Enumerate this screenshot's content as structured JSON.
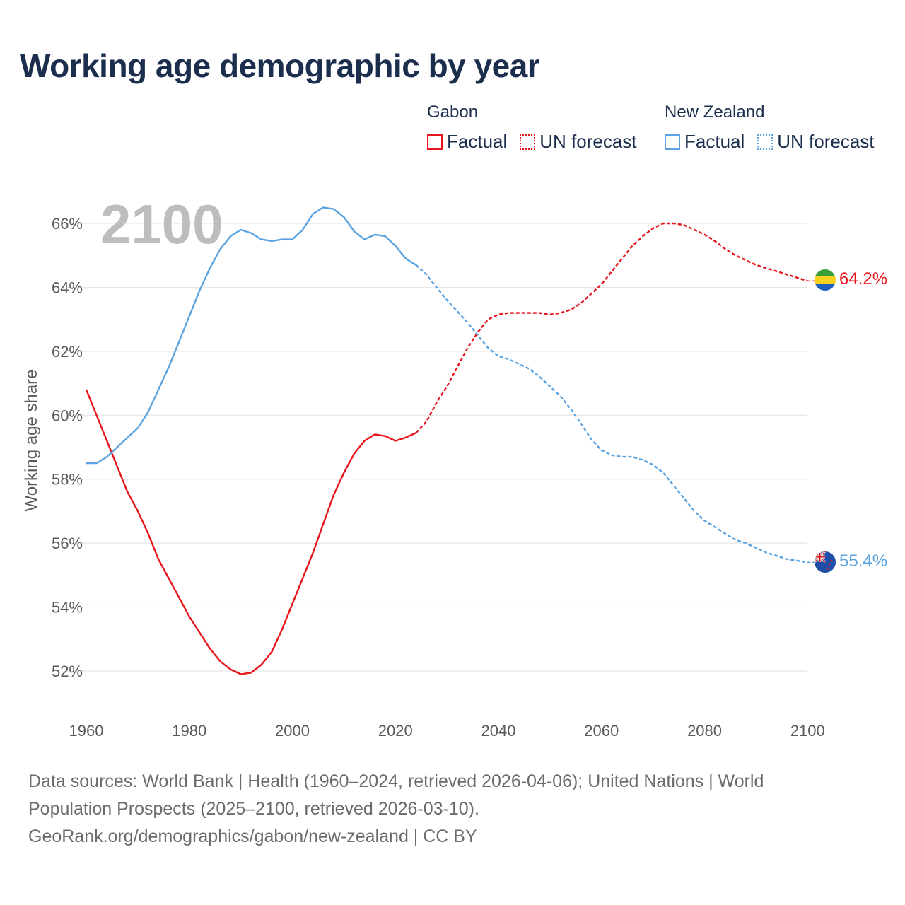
{
  "title": "Working age demographic by year",
  "legend": {
    "groups": [
      {
        "name": "Gabon",
        "color": "#e8141b",
        "factual": "Factual",
        "forecast": "UN forecast"
      },
      {
        "name": "New Zealand",
        "color": "#5ba3e0",
        "factual": "Factual",
        "forecast": "UN forecast"
      }
    ]
  },
  "footer": {
    "line1": "Data sources: World Bank | Health (1960–2024, retrieved 2026-04-06); United Nations | World",
    "line2": "Population Prospects (2025–2100, retrieved 2026-03-10).",
    "line3": "GeoRank.org/demographics/gabon/new-zealand | CC BY"
  },
  "chart_data": {
    "type": "line",
    "year_label": "2100",
    "ylabel": "Working age share",
    "xlim": [
      1960,
      2103
    ],
    "ylim": [
      51,
      67.5
    ],
    "x_ticks": [
      1960,
      1980,
      2000,
      2020,
      2040,
      2060,
      2080,
      2100
    ],
    "y_ticks": [
      52,
      54,
      56,
      58,
      60,
      62,
      64,
      66
    ],
    "y_tick_suffix": "%",
    "forecast_start": 2024,
    "series": [
      {
        "name": "Gabon",
        "color": "#e8141b",
        "end_label": "64.2%",
        "points": [
          [
            1960,
            60.8
          ],
          [
            1962,
            60.0
          ],
          [
            1964,
            59.2
          ],
          [
            1966,
            58.4
          ],
          [
            1968,
            57.6
          ],
          [
            1970,
            57.0
          ],
          [
            1972,
            56.3
          ],
          [
            1974,
            55.5
          ],
          [
            1976,
            54.9
          ],
          [
            1978,
            54.3
          ],
          [
            1980,
            53.7
          ],
          [
            1982,
            53.2
          ],
          [
            1984,
            52.7
          ],
          [
            1986,
            52.3
          ],
          [
            1988,
            52.05
          ],
          [
            1990,
            51.9
          ],
          [
            1992,
            51.95
          ],
          [
            1994,
            52.2
          ],
          [
            1996,
            52.6
          ],
          [
            1998,
            53.3
          ],
          [
            2000,
            54.1
          ],
          [
            2002,
            54.9
          ],
          [
            2004,
            55.7
          ],
          [
            2006,
            56.6
          ],
          [
            2008,
            57.5
          ],
          [
            2010,
            58.2
          ],
          [
            2012,
            58.8
          ],
          [
            2014,
            59.2
          ],
          [
            2016,
            59.4
          ],
          [
            2018,
            59.35
          ],
          [
            2020,
            59.2
          ],
          [
            2022,
            59.3
          ],
          [
            2024,
            59.45
          ],
          [
            2026,
            59.8
          ],
          [
            2028,
            60.4
          ],
          [
            2030,
            60.9
          ],
          [
            2032,
            61.5
          ],
          [
            2034,
            62.1
          ],
          [
            2036,
            62.6
          ],
          [
            2038,
            63.0
          ],
          [
            2040,
            63.15
          ],
          [
            2042,
            63.2
          ],
          [
            2044,
            63.2
          ],
          [
            2046,
            63.2
          ],
          [
            2048,
            63.2
          ],
          [
            2050,
            63.15
          ],
          [
            2052,
            63.2
          ],
          [
            2054,
            63.3
          ],
          [
            2056,
            63.5
          ],
          [
            2058,
            63.8
          ],
          [
            2060,
            64.1
          ],
          [
            2062,
            64.5
          ],
          [
            2064,
            64.9
          ],
          [
            2066,
            65.3
          ],
          [
            2068,
            65.6
          ],
          [
            2070,
            65.85
          ],
          [
            2072,
            66.0
          ],
          [
            2074,
            66.0
          ],
          [
            2076,
            65.95
          ],
          [
            2078,
            65.8
          ],
          [
            2080,
            65.65
          ],
          [
            2082,
            65.45
          ],
          [
            2084,
            65.2
          ],
          [
            2086,
            65.0
          ],
          [
            2088,
            64.85
          ],
          [
            2090,
            64.7
          ],
          [
            2092,
            64.6
          ],
          [
            2094,
            64.5
          ],
          [
            2096,
            64.4
          ],
          [
            2098,
            64.3
          ],
          [
            2100,
            64.2
          ]
        ]
      },
      {
        "name": "New Zealand",
        "color": "#5ba3e0",
        "end_label": "55.4%",
        "points": [
          [
            1960,
            58.5
          ],
          [
            1962,
            58.5
          ],
          [
            1964,
            58.7
          ],
          [
            1966,
            59.0
          ],
          [
            1968,
            59.3
          ],
          [
            1970,
            59.6
          ],
          [
            1972,
            60.1
          ],
          [
            1974,
            60.8
          ],
          [
            1976,
            61.5
          ],
          [
            1978,
            62.3
          ],
          [
            1980,
            63.1
          ],
          [
            1982,
            63.9
          ],
          [
            1984,
            64.6
          ],
          [
            1986,
            65.2
          ],
          [
            1988,
            65.6
          ],
          [
            1990,
            65.8
          ],
          [
            1992,
            65.7
          ],
          [
            1994,
            65.5
          ],
          [
            1996,
            65.45
          ],
          [
            1998,
            65.5
          ],
          [
            2000,
            65.5
          ],
          [
            2002,
            65.8
          ],
          [
            2004,
            66.3
          ],
          [
            2006,
            66.5
          ],
          [
            2008,
            66.45
          ],
          [
            2010,
            66.2
          ],
          [
            2012,
            65.75
          ],
          [
            2014,
            65.5
          ],
          [
            2016,
            65.65
          ],
          [
            2018,
            65.6
          ],
          [
            2020,
            65.3
          ],
          [
            2022,
            64.9
          ],
          [
            2024,
            64.7
          ],
          [
            2026,
            64.4
          ],
          [
            2028,
            64.0
          ],
          [
            2030,
            63.6
          ],
          [
            2032,
            63.25
          ],
          [
            2034,
            62.9
          ],
          [
            2036,
            62.5
          ],
          [
            2038,
            62.1
          ],
          [
            2040,
            61.85
          ],
          [
            2042,
            61.75
          ],
          [
            2044,
            61.6
          ],
          [
            2046,
            61.45
          ],
          [
            2048,
            61.2
          ],
          [
            2050,
            60.9
          ],
          [
            2052,
            60.6
          ],
          [
            2054,
            60.2
          ],
          [
            2056,
            59.75
          ],
          [
            2058,
            59.25
          ],
          [
            2060,
            58.9
          ],
          [
            2062,
            58.75
          ],
          [
            2064,
            58.7
          ],
          [
            2066,
            58.7
          ],
          [
            2068,
            58.6
          ],
          [
            2070,
            58.45
          ],
          [
            2072,
            58.2
          ],
          [
            2074,
            57.8
          ],
          [
            2076,
            57.4
          ],
          [
            2078,
            57.0
          ],
          [
            2080,
            56.7
          ],
          [
            2082,
            56.5
          ],
          [
            2084,
            56.3
          ],
          [
            2086,
            56.1
          ],
          [
            2088,
            56.0
          ],
          [
            2090,
            55.85
          ],
          [
            2092,
            55.7
          ],
          [
            2094,
            55.6
          ],
          [
            2096,
            55.5
          ],
          [
            2098,
            55.45
          ],
          [
            2100,
            55.4
          ]
        ]
      }
    ]
  }
}
